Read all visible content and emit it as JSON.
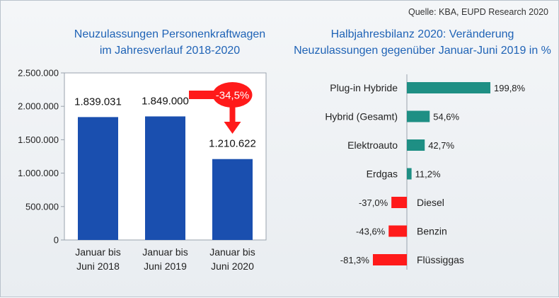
{
  "source": "Quelle: KBA, EUPD Research 2020",
  "colors": {
    "left_bar": "#1a4faf",
    "pos_bar": "#1e8f84",
    "neg_bar": "#ff1a1a",
    "title": "#1f63b6",
    "callout": "#ff1a1a"
  },
  "chart_data": [
    {
      "type": "bar",
      "title": "Neuzulassungen Personenkraftwagen im Jahresverlauf 2018-2020",
      "title_lines": [
        "Neuzulassungen Personenkraftwagen",
        "im Jahresverlauf 2018-2020"
      ],
      "categories": [
        [
          "Januar bis",
          "Juni 2018"
        ],
        [
          "Januar bis",
          "Juni 2019"
        ],
        [
          "Januar bis",
          "Juni 2020"
        ]
      ],
      "values": [
        1839031,
        1849000,
        1210622
      ],
      "value_labels": [
        "1.839.031",
        "1.849.000",
        "1.210.622"
      ],
      "ylim": [
        0,
        2500000
      ],
      "yticks": [
        0,
        500000,
        1000000,
        1500000,
        2000000,
        2500000
      ],
      "ytick_labels": [
        "0",
        "500.000",
        "1.000.000",
        "1.500.000",
        "2.000.000",
        "2.500.000"
      ],
      "grid": false,
      "annotation": "-34,5%"
    },
    {
      "type": "bar",
      "orientation": "horizontal",
      "title": "Halbjahresbilanz 2020: Veränderung Neuzulassungen gegenüber Januar-Juni 2019 in %",
      "title_lines": [
        "Halbjahresbilanz 2020: Veränderung",
        "Neuzulassungen gegenüber Januar-Juni 2019 in %"
      ],
      "categories": [
        "Plug-in Hybride",
        "Hybrid (Gesamt)",
        "Elektroauto",
        "Erdgas",
        "Diesel",
        "Benzin",
        "Flüssiggas"
      ],
      "values": [
        199.8,
        54.6,
        42.7,
        11.2,
        -37.0,
        -43.6,
        -81.3
      ],
      "value_labels": [
        "199,8%",
        "54,6%",
        "42,7%",
        "11,2%",
        "-37,0%",
        "-43,6%",
        "-81,3%"
      ],
      "grid": false
    }
  ]
}
